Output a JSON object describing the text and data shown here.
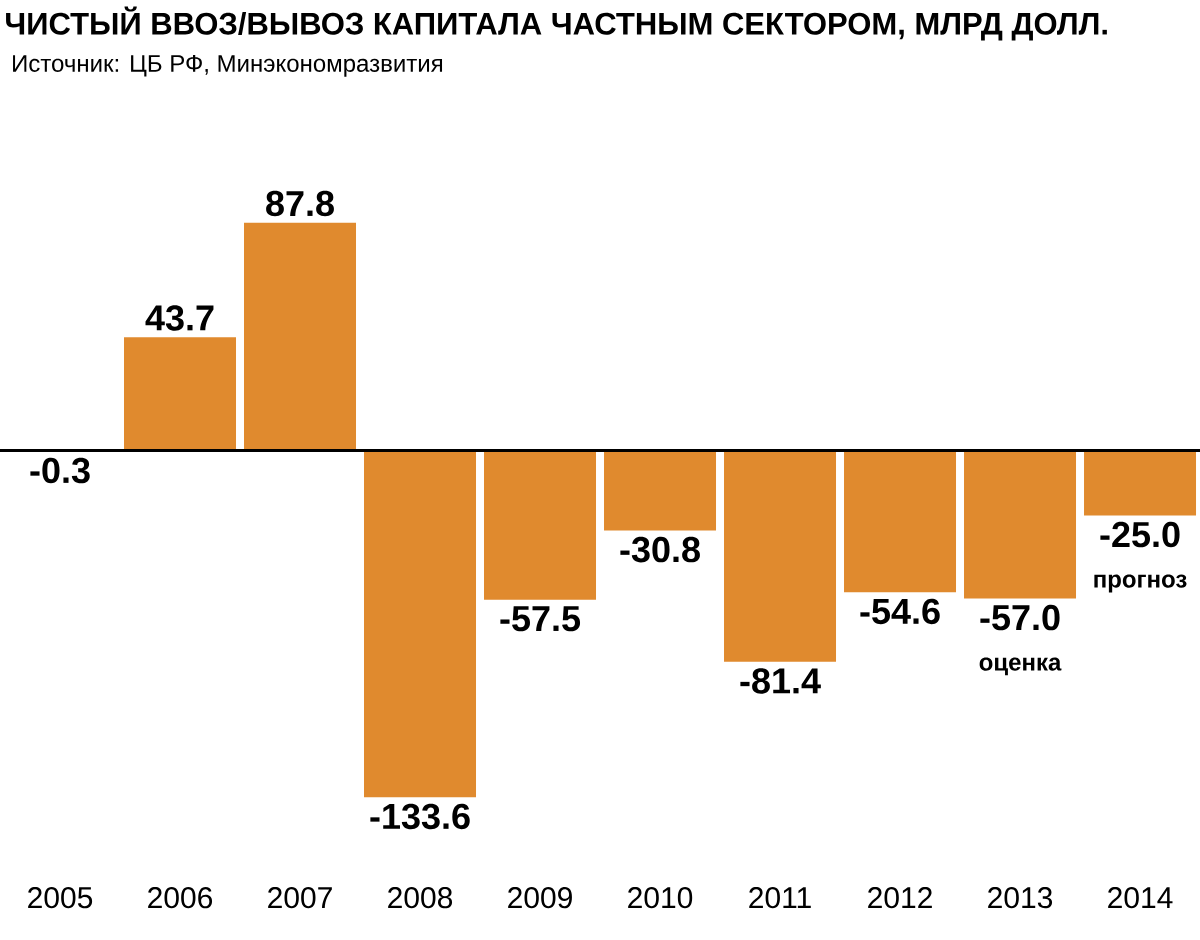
{
  "chart_data": {
    "type": "bar",
    "title": "ЧИСТЫЙ ВВОЗ/ВЫВОЗ КАПИТАЛА ЧАСТНЫМ СЕКТОРОМ, МЛРД ДОЛЛ.",
    "subtitle": "Источник: ЦБ РФ, Минэкономразвития",
    "categories": [
      "2005",
      "2006",
      "2007",
      "2008",
      "2009",
      "2010",
      "2011",
      "2012",
      "2013",
      "2014"
    ],
    "values": [
      -0.3,
      43.7,
      87.8,
      -133.6,
      -57.5,
      -30.8,
      -81.4,
      -54.6,
      -57.0,
      -25.0
    ],
    "value_labels": [
      "-0.3",
      "43.7",
      "87.8",
      "-133.6",
      "-57.5",
      "-30.8",
      "-81.4",
      "-54.6",
      "-57.0",
      "-25.0"
    ],
    "color": "#e08a2e",
    "annotations": [
      {
        "text": "оценка",
        "x": "2013",
        "y": -57.0
      },
      {
        "text": "прогноз",
        "x": "2014",
        "y": -25.0
      }
    ]
  }
}
